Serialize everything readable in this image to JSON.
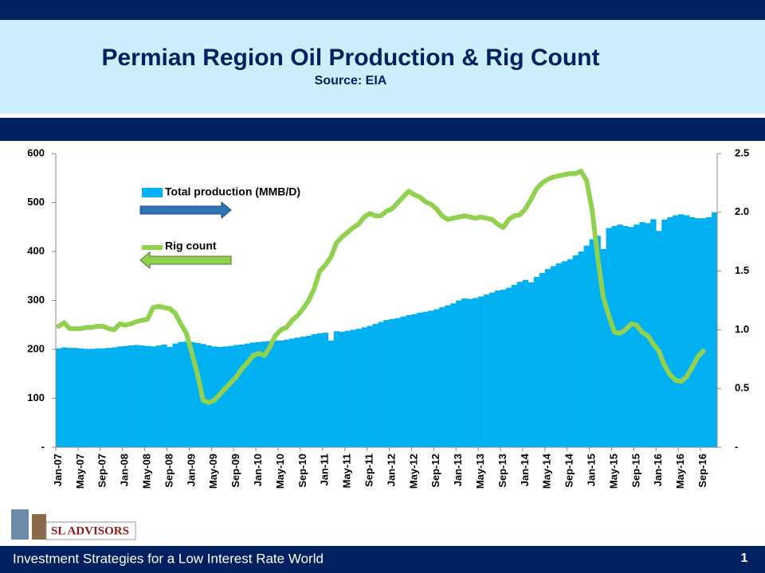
{
  "chart_data": {
    "type": "bar-line",
    "title": "Permian Region Oil Production & Rig Count",
    "subtitle": "Source: EIA",
    "categories": [
      "Jan-07",
      null,
      null,
      null,
      "May-07",
      null,
      null,
      null,
      "Sep-07",
      null,
      null,
      null,
      "Jan-08",
      null,
      null,
      null,
      "May-08",
      null,
      null,
      null,
      "Sep-08",
      null,
      null,
      null,
      "Jan-09",
      null,
      null,
      null,
      "May-09",
      null,
      null,
      null,
      "Sep-09",
      null,
      null,
      null,
      "Jan-10",
      null,
      null,
      null,
      "May-10",
      null,
      null,
      null,
      "Sep-10",
      null,
      null,
      null,
      "Jan-11",
      null,
      null,
      null,
      "May-11",
      null,
      null,
      null,
      "Sep-11",
      null,
      null,
      null,
      "Jan-12",
      null,
      null,
      null,
      "May-12",
      null,
      null,
      null,
      "Sep-12",
      null,
      null,
      null,
      "Jan-13",
      null,
      null,
      null,
      "May-13",
      null,
      null,
      null,
      "Sep-13",
      null,
      null,
      null,
      "Jan-14",
      null,
      null,
      null,
      "May-14",
      null,
      null,
      null,
      "Sep-14",
      null,
      null,
      null,
      "Jan-15",
      null,
      null,
      null,
      "May-15",
      null,
      null,
      null,
      "Sep-15",
      null,
      null,
      null,
      "Jan-16",
      null,
      null,
      null,
      "May-16",
      null,
      null,
      null,
      "Sep-16",
      null,
      null
    ],
    "series": [
      {
        "name": "Total production (MMB/D)",
        "type": "bar",
        "axis": "y",
        "color": "#00b0f0",
        "values": [
          202,
          204,
          203,
          203,
          202,
          201,
          201,
          202,
          202,
          203,
          204,
          206,
          207,
          208,
          209,
          208,
          207,
          206,
          208,
          210,
          205,
          212,
          215,
          216,
          215,
          213,
          211,
          208,
          206,
          205,
          206,
          207,
          209,
          210,
          212,
          214,
          215,
          216,
          217,
          218,
          218,
          220,
          222,
          224,
          226,
          228,
          231,
          233,
          234,
          218,
          237,
          236,
          238,
          240,
          242,
          245,
          248,
          252,
          256,
          260,
          262,
          264,
          267,
          270,
          272,
          275,
          277,
          279,
          282,
          286,
          290,
          294,
          300,
          304,
          303,
          305,
          308,
          312,
          316,
          320,
          322,
          326,
          332,
          338,
          342,
          337,
          348,
          356,
          364,
          370,
          376,
          380,
          384,
          392,
          400,
          412,
          425,
          432,
          405,
          448,
          452,
          455,
          452,
          450,
          455,
          460,
          458,
          466,
          442,
          465,
          470,
          474,
          476,
          474,
          470,
          468,
          468,
          470,
          480
        ]
      },
      {
        "name": "Rig count",
        "type": "line",
        "axis": "y2",
        "color": "#92d050",
        "values": [
          1.03,
          1.06,
          1.01,
          1.01,
          1.01,
          1.02,
          1.02,
          1.03,
          1.03,
          1.01,
          1.0,
          1.05,
          1.04,
          1.05,
          1.07,
          1.08,
          1.09,
          1.19,
          1.2,
          1.19,
          1.18,
          1.14,
          1.05,
          0.97,
          0.8,
          0.62,
          0.4,
          0.38,
          0.4,
          0.45,
          0.5,
          0.55,
          0.6,
          0.67,
          0.72,
          0.78,
          0.8,
          0.78,
          0.85,
          0.95,
          1.0,
          1.02,
          1.08,
          1.12,
          1.18,
          1.25,
          1.35,
          1.5,
          1.55,
          1.62,
          1.74,
          1.79,
          1.83,
          1.87,
          1.9,
          1.96,
          1.99,
          1.97,
          1.97,
          2.01,
          2.03,
          2.08,
          2.13,
          2.18,
          2.15,
          2.13,
          2.09,
          2.07,
          2.03,
          1.97,
          1.94,
          1.95,
          1.96,
          1.97,
          1.96,
          1.95,
          1.96,
          1.95,
          1.94,
          1.9,
          1.87,
          1.94,
          1.97,
          1.98,
          2.03,
          2.11,
          2.2,
          2.25,
          2.28,
          2.3,
          2.31,
          2.32,
          2.33,
          2.33,
          2.35,
          2.27,
          2.02,
          1.62,
          1.28,
          1.12,
          0.98,
          0.97,
          1.0,
          1.05,
          1.04,
          0.98,
          0.95,
          0.88,
          0.82,
          0.7,
          0.62,
          0.57,
          0.56,
          0.6,
          0.68,
          0.77,
          0.82,
          null,
          null
        ]
      }
    ],
    "ylim": [
      0,
      600
    ],
    "yticks": [
      {
        "value": 0,
        "label": "-"
      },
      100,
      200,
      300,
      400,
      500,
      600
    ],
    "y2lim": [
      0,
      2.5
    ],
    "y2ticks": [
      {
        "value": 0,
        "label": "-"
      },
      0.5,
      {
        "value": 1,
        "label": "1.0"
      },
      1.5,
      {
        "value": 2,
        "label": "2.0"
      },
      2.5
    ]
  },
  "logo": "SL ADVISORS",
  "footer": {
    "tagline": "Investment Strategies for a Low Interest Rate World",
    "page": "1"
  }
}
